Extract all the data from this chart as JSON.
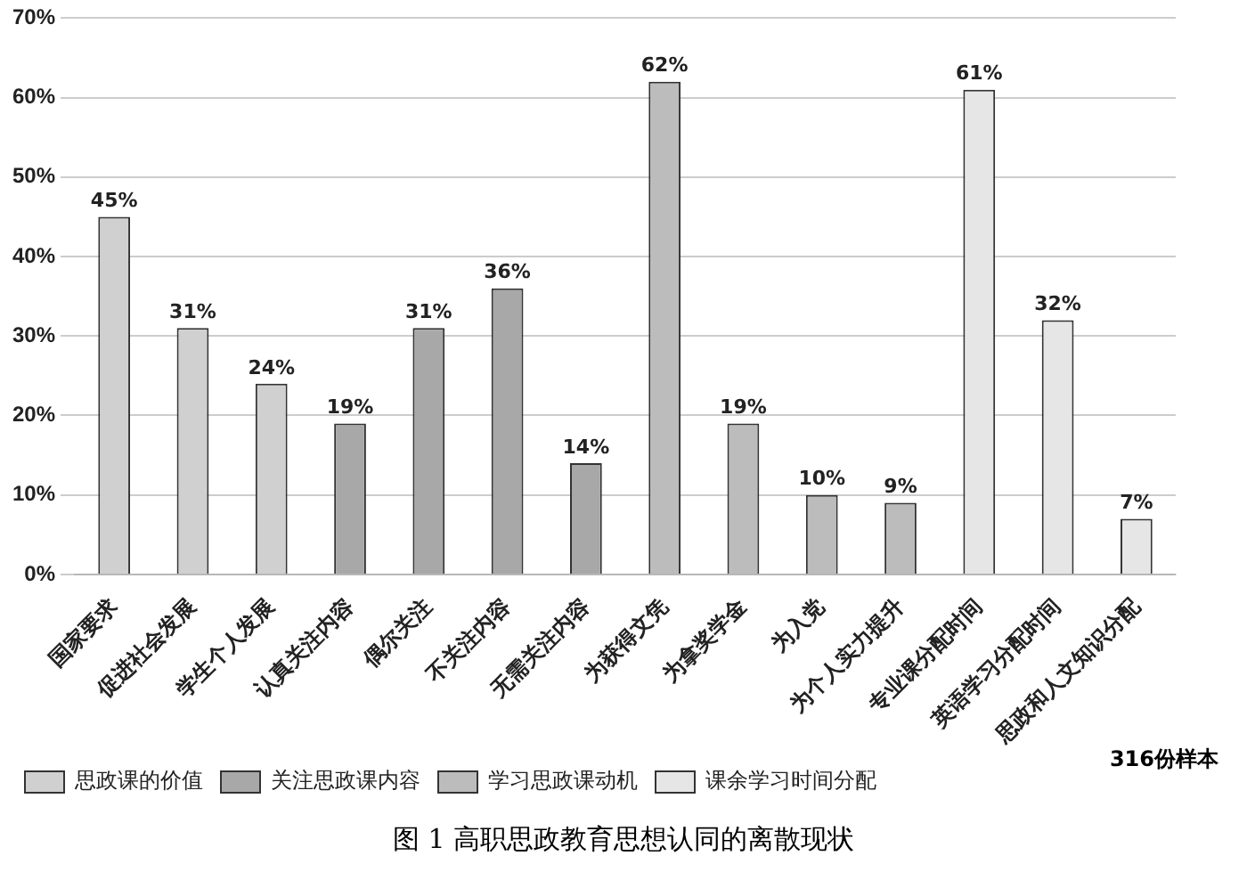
{
  "chart_data": {
    "type": "bar",
    "title": "图 1 高职思政教育思想认同的离散现状",
    "categories": [
      "国家要求",
      "促进社会发展",
      "学生个人发展",
      "认真关注内容",
      "偶尔关注",
      "不关注内容",
      "无需关注内容",
      "为获得文凭",
      "为拿奖学金",
      "为入党",
      "为个人实力提升",
      "专业课分配时间",
      "英语学习分配时间",
      "思政和人文知识分配"
    ],
    "series": [
      {
        "name": "思政课的价值",
        "color": "#d0d0d0",
        "values": [
          45,
          31,
          24,
          null,
          null,
          null,
          null,
          null,
          null,
          null,
          null,
          null,
          null,
          null
        ],
        "value_labels": [
          "45%",
          "31%",
          "24%",
          null,
          null,
          null,
          null,
          null,
          null,
          null,
          null,
          null,
          null,
          null
        ]
      },
      {
        "name": "关注思政课内容",
        "color": "#a8a8a8",
        "values": [
          null,
          null,
          null,
          19,
          31,
          36,
          14,
          null,
          null,
          null,
          null,
          null,
          null,
          null
        ],
        "value_labels": [
          null,
          null,
          null,
          "19%",
          "31%",
          "36%",
          "14%",
          null,
          null,
          null,
          null,
          null,
          null,
          null
        ]
      },
      {
        "name": "学习思政课动机",
        "color": "#bcbcbc",
        "values": [
          null,
          null,
          null,
          null,
          null,
          null,
          null,
          62,
          19,
          10,
          9,
          null,
          null,
          null
        ],
        "value_labels": [
          null,
          null,
          null,
          null,
          null,
          null,
          null,
          "62%",
          "19%",
          "10%",
          "9%",
          null,
          null,
          null
        ]
      },
      {
        "name": "课余学习时间分配",
        "color": "#e6e6e6",
        "values": [
          null,
          null,
          null,
          null,
          null,
          null,
          null,
          null,
          null,
          null,
          null,
          61,
          32,
          7
        ],
        "value_labels": [
          null,
          null,
          null,
          null,
          null,
          null,
          null,
          null,
          null,
          null,
          null,
          "61%",
          "32%",
          "7%"
        ]
      }
    ],
    "ylim": [
      0,
      70
    ],
    "yticks": [
      {
        "value": 0,
        "label": "0%"
      },
      {
        "value": 10,
        "label": "10%"
      },
      {
        "value": 20,
        "label": "20%"
      },
      {
        "value": 30,
        "label": "30%"
      },
      {
        "value": 40,
        "label": "40%"
      },
      {
        "value": 50,
        "label": "50%"
      },
      {
        "value": 60,
        "label": "60%"
      },
      {
        "value": 70,
        "label": "70%"
      }
    ],
    "grid": "y",
    "legend": "bottom",
    "annotations": [
      "316份样本"
    ]
  }
}
